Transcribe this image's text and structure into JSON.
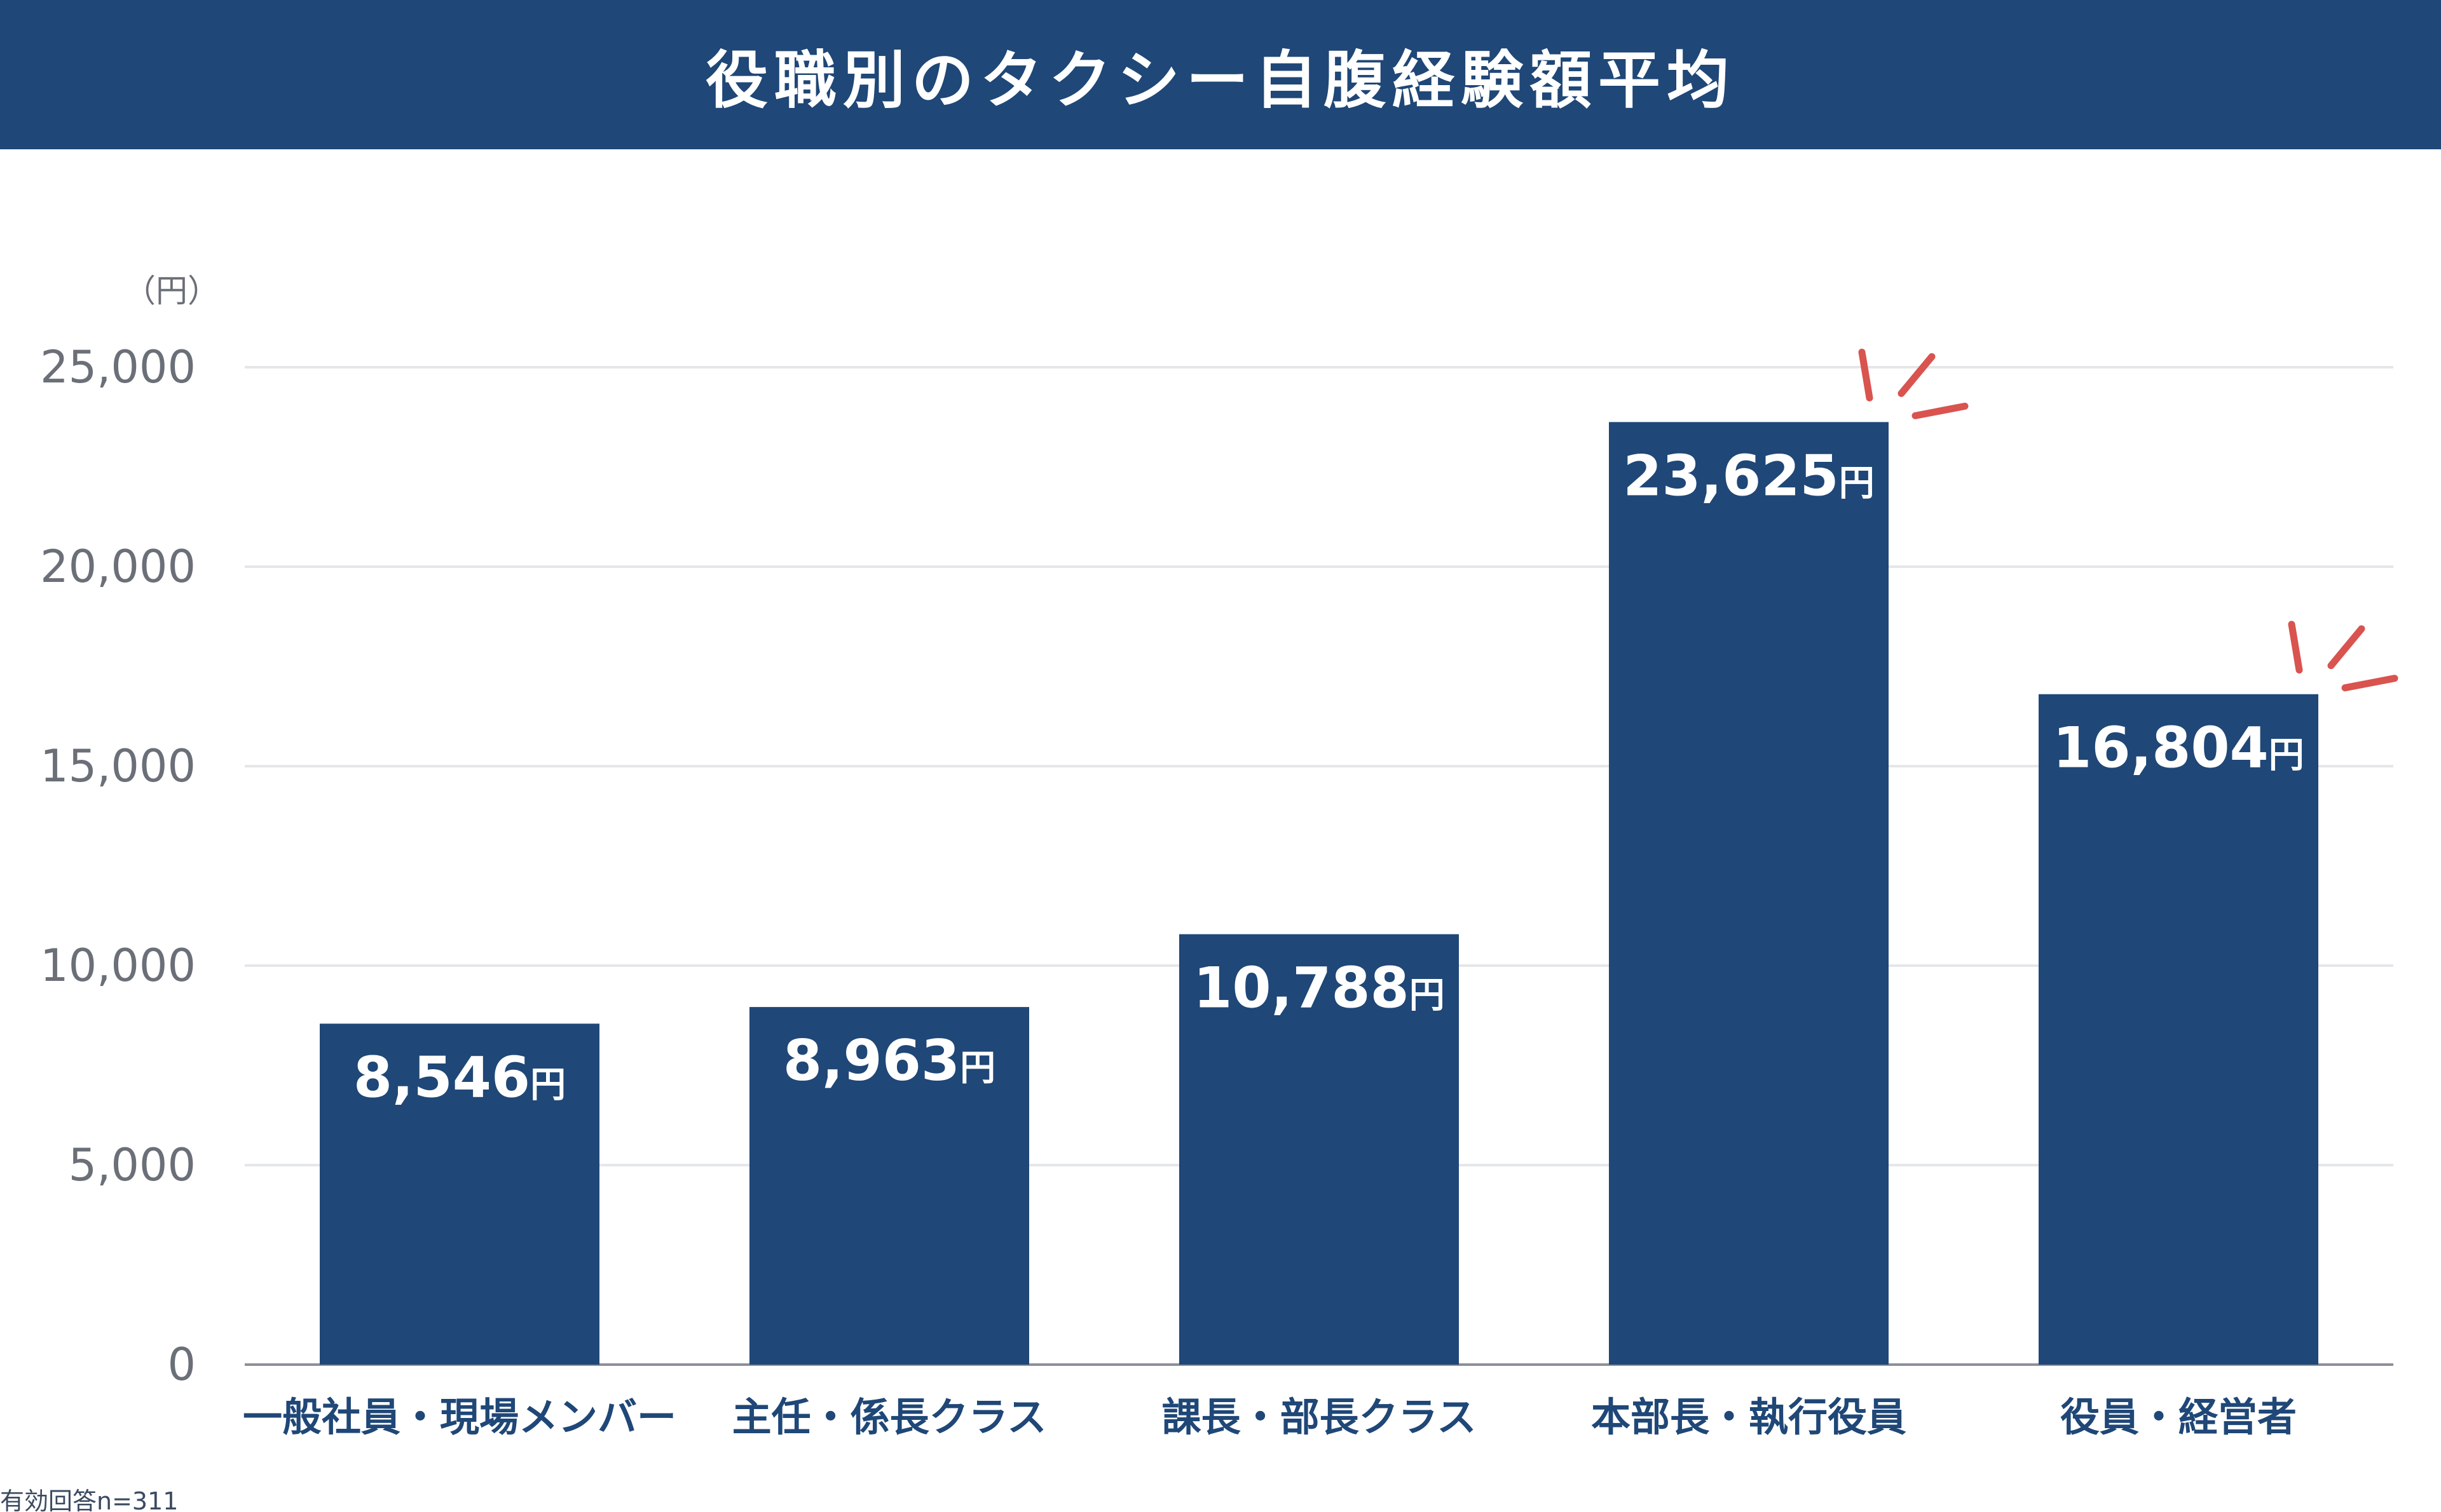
{
  "title": "役職別のタクシー自腹経験額平均",
  "footnote": "有効回答n=311",
  "colors": {
    "header": "#1f4777",
    "bar": "#1f4777",
    "grid": "#e4e6ea",
    "axis_text": "#6b6f78",
    "category_text": "#1f4777",
    "accent": "#d9534f"
  },
  "chart_data": {
    "type": "bar",
    "title": "役職別のタクシー自腹経験額平均",
    "categories": [
      "一般社員・現場メンバー",
      "主任・係長クラス",
      "課長・部長クラス",
      "本部長・執行役員",
      "役員・経営者"
    ],
    "values": [
      8546,
      8963,
      10788,
      23625,
      16804
    ],
    "value_labels": [
      "8,546",
      "8,963",
      "10,788",
      "23,625",
      "16,804"
    ],
    "value_unit": "円",
    "ylabel": "（円）",
    "ylim": [
      0,
      25000
    ],
    "yticks": [
      0,
      5000,
      10000,
      15000,
      20000,
      25000
    ],
    "ytick_labels": [
      "0",
      "5,000",
      "10,000",
      "15,000",
      "20,000",
      "25,000"
    ],
    "grid": true,
    "highlighted": [
      3,
      4
    ]
  }
}
